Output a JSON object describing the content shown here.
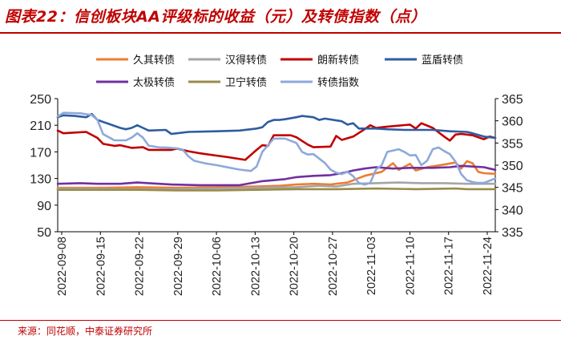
{
  "title": "图表22：信创板块AA评级标的收益（元）及转债指数（点）",
  "source": "来源：同花顺，中泰证券研究所",
  "chart_data": {
    "type": "line",
    "title": "图表22：信创板块AA评级标的收益（元）及转债指数（点）",
    "y_left": {
      "min": 50,
      "max": 250,
      "ticks": [
        50,
        90,
        130,
        170,
        210,
        250
      ]
    },
    "y_right": {
      "min": 335,
      "max": 365,
      "ticks": [
        335,
        340,
        345,
        350,
        355,
        360,
        365
      ]
    },
    "x_labels": [
      "2022-09-08",
      "2022-09-15",
      "2022-09-22",
      "2022-09-29",
      "2022-10-06",
      "2022-10-13",
      "2022-10-20",
      "2022-10-27",
      "2022-11-03",
      "2022-11-10",
      "2022-11-17",
      "2022-11-24"
    ],
    "x_range": [
      0,
      77
    ],
    "series": [
      {
        "name": "久其转债",
        "color": "#ed7d31",
        "axis": "left",
        "points": [
          [
            0,
            116
          ],
          [
            7,
            116
          ],
          [
            14,
            117
          ],
          [
            21,
            116
          ],
          [
            28,
            117
          ],
          [
            35,
            118
          ],
          [
            39,
            119
          ],
          [
            42,
            121
          ],
          [
            45,
            122
          ],
          [
            48,
            121
          ],
          [
            51,
            124
          ],
          [
            54,
            134
          ],
          [
            57,
            140
          ],
          [
            59,
            153
          ],
          [
            60,
            143
          ],
          [
            62,
            152
          ],
          [
            63,
            142
          ],
          [
            65,
            147
          ],
          [
            68,
            151
          ],
          [
            70,
            154
          ],
          [
            71,
            145
          ],
          [
            72,
            156
          ],
          [
            73,
            153
          ],
          [
            74,
            140
          ],
          [
            75,
            138
          ],
          [
            77,
            137
          ]
        ]
      },
      {
        "name": "汉得转债",
        "color": "#a5a5a5",
        "axis": "left",
        "points": [
          [
            0,
            115
          ],
          [
            14,
            114
          ],
          [
            21,
            114
          ],
          [
            28,
            115
          ],
          [
            35,
            116
          ],
          [
            42,
            117
          ],
          [
            46,
            119
          ],
          [
            49,
            118
          ],
          [
            52,
            122
          ],
          [
            56,
            123
          ],
          [
            60,
            124
          ],
          [
            64,
            123
          ],
          [
            68,
            123
          ],
          [
            72,
            122
          ],
          [
            75,
            122
          ],
          [
            77,
            122
          ]
        ]
      },
      {
        "name": "朗新转债",
        "color": "#c00000",
        "axis": "left",
        "points": [
          [
            0,
            202
          ],
          [
            1,
            198
          ],
          [
            3,
            199
          ],
          [
            5,
            200
          ],
          [
            7,
            191
          ],
          [
            8,
            182
          ],
          [
            10,
            179
          ],
          [
            11,
            180
          ],
          [
            13,
            176
          ],
          [
            15,
            177
          ],
          [
            16,
            173
          ],
          [
            18,
            173
          ],
          [
            20,
            173
          ],
          [
            21,
            175
          ],
          [
            23,
            171
          ],
          [
            25,
            168
          ],
          [
            30,
            162
          ],
          [
            33,
            158
          ],
          [
            35,
            173
          ],
          [
            36,
            180
          ],
          [
            37,
            179
          ],
          [
            38,
            195
          ],
          [
            41,
            195
          ],
          [
            42,
            192
          ],
          [
            44,
            181
          ],
          [
            45,
            177
          ],
          [
            48,
            178
          ],
          [
            49,
            194
          ],
          [
            50,
            188
          ],
          [
            52,
            193
          ],
          [
            54,
            204
          ],
          [
            55,
            210
          ],
          [
            56,
            206
          ],
          [
            58,
            208
          ],
          [
            62,
            211
          ],
          [
            63,
            205
          ],
          [
            64,
            213
          ],
          [
            66,
            206
          ],
          [
            68,
            193
          ],
          [
            69,
            187
          ],
          [
            70,
            196
          ],
          [
            71,
            197
          ],
          [
            73,
            195
          ],
          [
            75,
            189
          ],
          [
            76,
            193
          ],
          [
            77,
            191
          ]
        ]
      },
      {
        "name": "蓝盾转债",
        "color": "#2e5ca0",
        "axis": "left",
        "points": [
          [
            0,
            222
          ],
          [
            1,
            225
          ],
          [
            3,
            224
          ],
          [
            5,
            222
          ],
          [
            6,
            227
          ],
          [
            7,
            218
          ],
          [
            9,
            212
          ],
          [
            11,
            206
          ],
          [
            12,
            204
          ],
          [
            13,
            206
          ],
          [
            14,
            210
          ],
          [
            15,
            206
          ],
          [
            16,
            202
          ],
          [
            19,
            203
          ],
          [
            20,
            197
          ],
          [
            21,
            198
          ],
          [
            23,
            200
          ],
          [
            28,
            201
          ],
          [
            32,
            202
          ],
          [
            35,
            205
          ],
          [
            36,
            207
          ],
          [
            37,
            215
          ],
          [
            38,
            218
          ],
          [
            39,
            218
          ],
          [
            40,
            219
          ],
          [
            42,
            222
          ],
          [
            43,
            224
          ],
          [
            45,
            222
          ],
          [
            46,
            218
          ],
          [
            47,
            220
          ],
          [
            50,
            216
          ],
          [
            51,
            211
          ],
          [
            52,
            213
          ],
          [
            53,
            205
          ],
          [
            56,
            205
          ],
          [
            58,
            204
          ],
          [
            61,
            203
          ],
          [
            66,
            203
          ],
          [
            69,
            201
          ],
          [
            72,
            200
          ],
          [
            73,
            198
          ],
          [
            75,
            193
          ],
          [
            77,
            191
          ]
        ]
      },
      {
        "name": "太极转债",
        "color": "#7030a0",
        "axis": "left",
        "points": [
          [
            0,
            122
          ],
          [
            4,
            123
          ],
          [
            7,
            122
          ],
          [
            11,
            122
          ],
          [
            14,
            124
          ],
          [
            16,
            123
          ],
          [
            20,
            121
          ],
          [
            25,
            120
          ],
          [
            30,
            120
          ],
          [
            32,
            120
          ],
          [
            34,
            123
          ],
          [
            36,
            126
          ],
          [
            40,
            129
          ],
          [
            42,
            132
          ],
          [
            45,
            134
          ],
          [
            48,
            135
          ],
          [
            50,
            138
          ],
          [
            52,
            142
          ],
          [
            54,
            145
          ],
          [
            56,
            147
          ],
          [
            59,
            145
          ],
          [
            62,
            146
          ],
          [
            66,
            146
          ],
          [
            69,
            147
          ],
          [
            71,
            149
          ],
          [
            73,
            148
          ],
          [
            75,
            147
          ],
          [
            76,
            145
          ],
          [
            77,
            143
          ]
        ]
      },
      {
        "name": "卫宁转债",
        "color": "#9b8b4a",
        "axis": "left",
        "points": [
          [
            0,
            113
          ],
          [
            7,
            113
          ],
          [
            14,
            113
          ],
          [
            21,
            112
          ],
          [
            28,
            112
          ],
          [
            35,
            113
          ],
          [
            42,
            114
          ],
          [
            49,
            114
          ],
          [
            56,
            115
          ],
          [
            63,
            114
          ],
          [
            70,
            115
          ],
          [
            72,
            114
          ],
          [
            77,
            114
          ]
        ]
      },
      {
        "name": "转债指数",
        "color": "#8ea9db",
        "axis": "right",
        "points": [
          [
            0,
            361
          ],
          [
            1,
            361.8
          ],
          [
            4,
            361.7
          ],
          [
            6,
            361.3
          ],
          [
            7,
            360.2
          ],
          [
            8,
            357
          ],
          [
            10,
            355.6
          ],
          [
            12,
            355.6
          ],
          [
            13,
            356.2
          ],
          [
            14,
            357.2
          ],
          [
            15,
            356.2
          ],
          [
            16,
            354.4
          ],
          [
            18,
            354
          ],
          [
            19,
            354
          ],
          [
            21,
            353.8
          ],
          [
            22,
            353.5
          ],
          [
            23,
            352
          ],
          [
            24,
            351
          ],
          [
            26,
            350.4
          ],
          [
            28,
            350
          ],
          [
            30,
            349.5
          ],
          [
            32,
            349
          ],
          [
            34,
            348.7
          ],
          [
            35,
            349.7
          ],
          [
            36,
            353
          ],
          [
            38,
            356
          ],
          [
            40,
            356
          ],
          [
            42,
            355
          ],
          [
            43,
            353
          ],
          [
            44,
            352.4
          ],
          [
            45,
            352.5
          ],
          [
            46,
            351.5
          ],
          [
            47,
            350.5
          ],
          [
            48,
            349
          ],
          [
            49,
            348.3
          ],
          [
            50,
            348
          ],
          [
            51,
            348.5
          ],
          [
            52,
            347.5
          ],
          [
            53,
            346
          ],
          [
            54,
            345.6
          ],
          [
            55,
            346
          ],
          [
            56,
            349
          ],
          [
            57,
            350
          ],
          [
            58,
            353
          ],
          [
            60,
            353.6
          ],
          [
            61,
            353
          ],
          [
            62,
            352.2
          ],
          [
            63,
            352.3
          ],
          [
            64,
            350
          ],
          [
            65,
            351
          ],
          [
            66,
            353.6
          ],
          [
            67,
            354
          ],
          [
            68,
            353.2
          ],
          [
            69,
            352.5
          ],
          [
            70,
            350.8
          ],
          [
            71,
            348
          ],
          [
            72,
            346.6
          ],
          [
            73,
            346.2
          ],
          [
            74,
            346
          ],
          [
            75,
            346
          ],
          [
            76,
            346.5
          ],
          [
            77,
            347
          ]
        ]
      }
    ]
  },
  "legend": {
    "row1": [
      "久其转债",
      "汉得转债",
      "朗新转债",
      "蓝盾转债"
    ],
    "row2": [
      "太极转债",
      "卫宁转债",
      "转债指数"
    ]
  }
}
